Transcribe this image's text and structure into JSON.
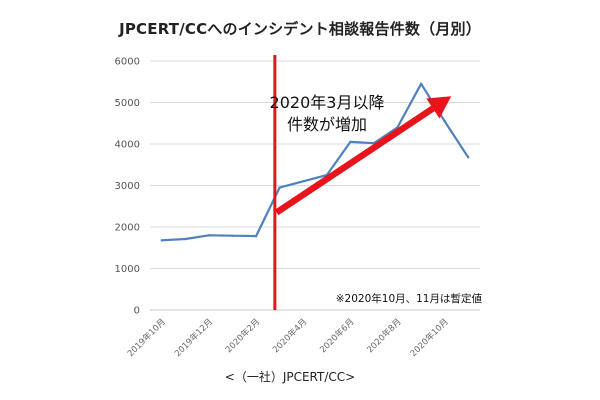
{
  "chart_data": {
    "type": "line",
    "title": "JPCERT/CCへのインシデント相談報告件数（月別）",
    "source": "<（一社）JPCERT/CC>",
    "xlabel": "",
    "ylabel": "",
    "ylim": [
      0,
      6000
    ],
    "yticks": [
      0,
      1000,
      2000,
      3000,
      4000,
      5000,
      6000
    ],
    "grid": true,
    "legend": "none",
    "x": [
      "2019年10月",
      "2019年11月",
      "2019年12月",
      "2020年1月",
      "2020年2月",
      "2020年3月",
      "2020年4月",
      "2020年5月",
      "2020年6月",
      "2020年7月",
      "2020年8月",
      "2020年9月",
      "2020年10月",
      "2020年11月"
    ],
    "x_tick_labels": [
      "2019年10月",
      "2019年12月",
      "2020年2月",
      "2020年4月",
      "2020年6月",
      "2020年8月",
      "2020年10月"
    ],
    "series": [
      {
        "values": [
          1680,
          1710,
          1800,
          1790,
          1780,
          2950,
          3100,
          3250,
          4050,
          4020,
          4400,
          5450,
          4550,
          3680
        ]
      }
    ],
    "line_color": "#4F81BD",
    "marker_line": {
      "at": "2020年3月",
      "color": "#E8131B"
    },
    "annotation_lines": [
      "2020年3月以降",
      "件数が増加"
    ],
    "trend_arrow": {
      "from": [
        "2020年3月",
        2350
      ],
      "to": [
        "2020年11月",
        5150
      ],
      "color": "#E8131B"
    },
    "note": "※2020年10月、11月は暫定値"
  }
}
